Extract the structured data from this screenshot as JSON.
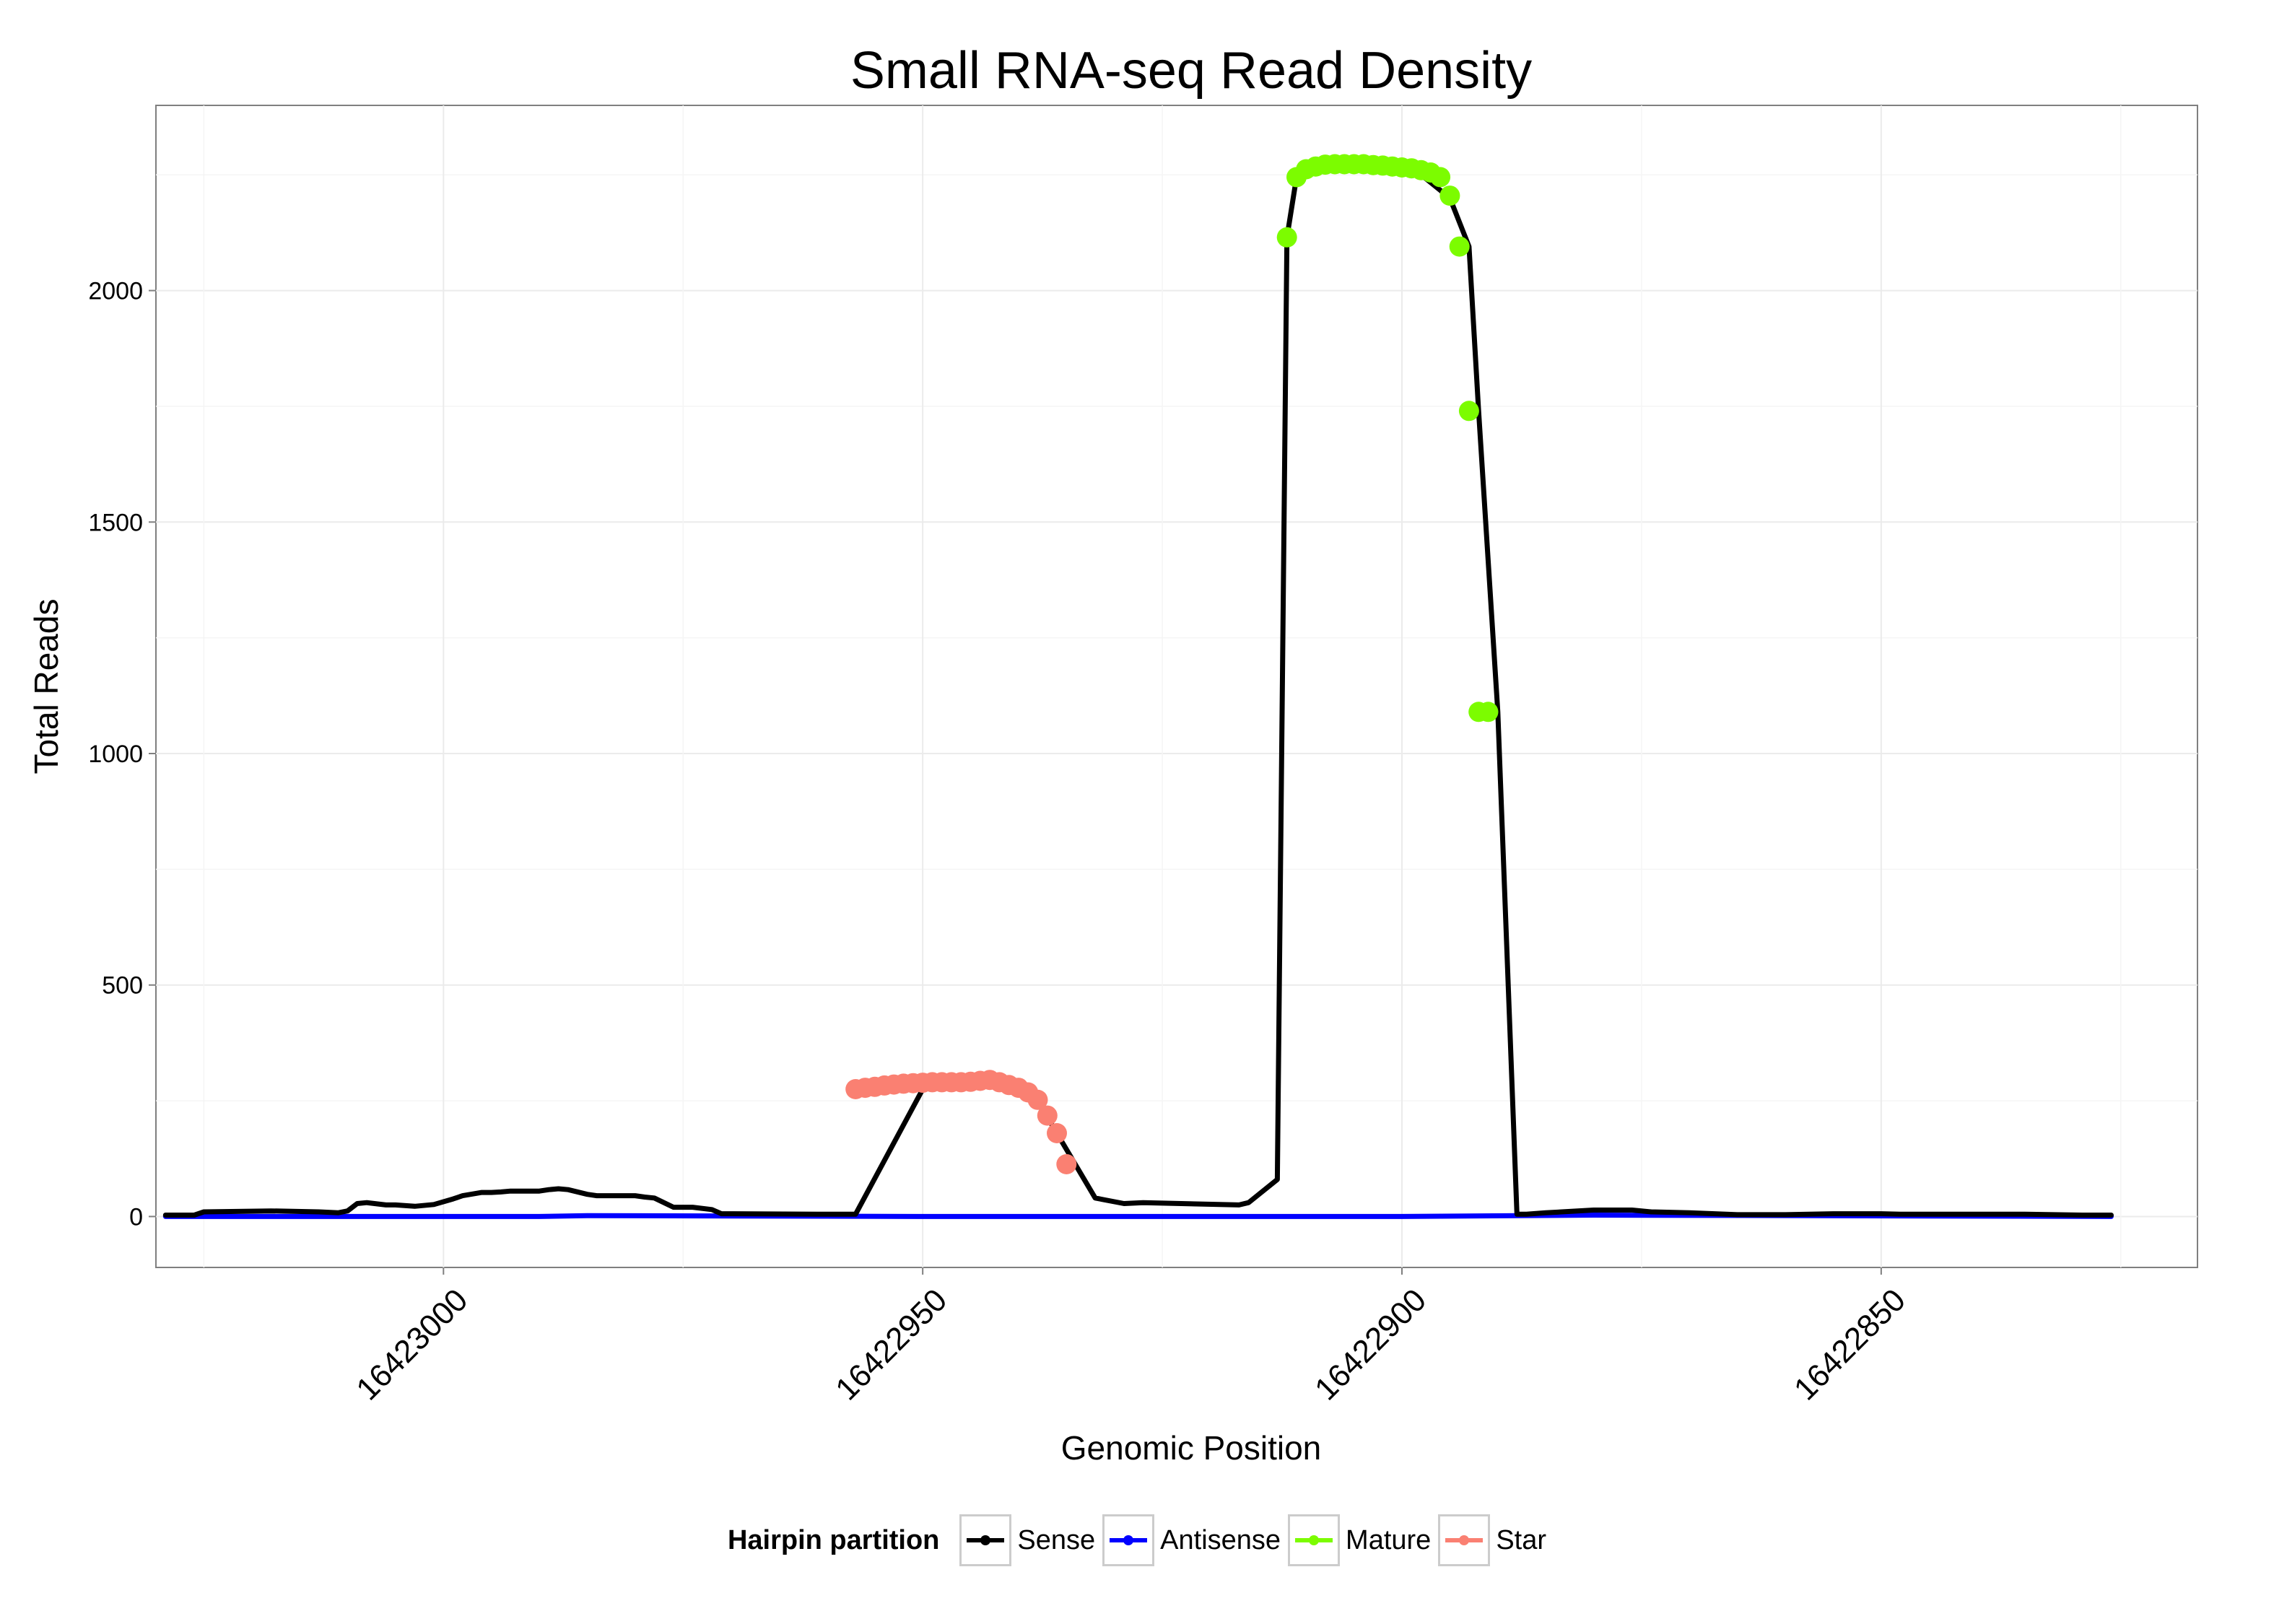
{
  "chart_data": {
    "type": "line",
    "title": "Small RNA-seq Read Density",
    "xlabel": "Genomic Position",
    "ylabel": "Total Reads",
    "x_reversed": true,
    "xlim": [
      16423030,
      16422817
    ],
    "ylim": [
      -110,
      2400
    ],
    "x_ticks": [
      16423000,
      16422950,
      16422900,
      16422850
    ],
    "x_tick_labels": [
      "16423000",
      "16422950",
      "16422900",
      "16422850"
    ],
    "y_ticks": [
      0,
      500,
      1000,
      1500,
      2000
    ],
    "y_tick_labels": [
      "0",
      "500",
      "1000",
      "1500",
      "2000"
    ],
    "grid": true,
    "legend": {
      "title": "Hairpin partition",
      "position": "bottom",
      "entries": [
        {
          "name": "Sense",
          "color": "#000000"
        },
        {
          "name": "Antisense",
          "color": "#0000ff"
        },
        {
          "name": "Mature",
          "color": "#7cfc00"
        },
        {
          "name": "Star",
          "color": "#fa8072"
        }
      ]
    },
    "series": [
      {
        "name": "Sense",
        "color": "#000000",
        "kind": "line",
        "x": [
          16423029,
          16423026,
          16423025,
          16423018,
          16423013,
          16423011,
          16423010,
          16423009,
          16423008,
          16423006,
          16423005,
          16423003,
          16423001,
          16422999,
          16422998,
          16422996,
          16422995,
          16422994,
          16422993,
          16422990,
          16422989,
          16422988,
          16422987,
          16422985,
          16422984,
          16422980,
          16422979,
          16422978,
          16422976,
          16422974,
          16422972,
          16422971,
          16422961,
          16422957,
          16422950,
          16422945,
          16422941,
          16422939,
          16422938,
          16422937,
          16422936,
          16422932,
          16422929,
          16422927,
          16422917,
          16422916,
          16422913,
          16422912,
          16422911,
          16422906,
          16422902,
          16422900,
          16422898,
          16422895,
          16422893,
          16422892,
          16422890,
          16422888,
          16422887,
          16422885,
          16422880,
          16422876,
          16422874,
          16422870,
          16422865,
          16422860,
          16422855,
          16422850,
          16422848,
          16422840,
          16422835,
          16422829,
          16422828,
          16422826
        ],
        "values": [
          3,
          3,
          10,
          12,
          10,
          8,
          12,
          28,
          30,
          25,
          25,
          22,
          26,
          38,
          45,
          52,
          52,
          53,
          55,
          55,
          58,
          60,
          58,
          48,
          45,
          45,
          42,
          40,
          20,
          20,
          15,
          6,
          5,
          5,
          275,
          290,
          290,
          270,
          250,
          215,
          180,
          40,
          28,
          30,
          25,
          30,
          80,
          2115,
          2245,
          2270,
          2270,
          2260,
          2250,
          2200,
          2095,
          1740,
          1090,
          5,
          5,
          8,
          14,
          14,
          10,
          8,
          4,
          4,
          6,
          6,
          5,
          5,
          5,
          3,
          3,
          3
        ]
      },
      {
        "name": "Antisense",
        "color": "#0000ff",
        "kind": "line",
        "x": [
          16423029,
          16422990,
          16422985,
          16422950,
          16422900,
          16422880,
          16422826
        ],
        "values": [
          0,
          0,
          2,
          0,
          0,
          3,
          0
        ]
      },
      {
        "name": "Mature",
        "color": "#7cfc00",
        "kind": "points",
        "x": [
          16422912,
          16422911,
          16422910,
          16422909,
          16422908,
          16422907,
          16422906,
          16422905,
          16422904,
          16422903,
          16422902,
          16422901,
          16422900,
          16422899,
          16422898,
          16422897,
          16422896,
          16422895,
          16422894,
          16422893,
          16422892,
          16422891
        ],
        "values": [
          2115,
          2245,
          2262,
          2268,
          2272,
          2273,
          2273,
          2273,
          2273,
          2271,
          2270,
          2268,
          2266,
          2264,
          2260,
          2255,
          2245,
          2205,
          2095,
          1740,
          1090,
          1090
        ]
      },
      {
        "name": "Star",
        "color": "#fa8072",
        "kind": "points",
        "x": [
          16422957,
          16422956,
          16422955,
          16422954,
          16422953,
          16422952,
          16422951,
          16422950,
          16422949,
          16422948,
          16422947,
          16422946,
          16422945,
          16422944,
          16422943,
          16422942,
          16422941,
          16422940,
          16422939,
          16422938,
          16422937,
          16422936,
          16422935
        ],
        "values": [
          275,
          278,
          280,
          283,
          285,
          287,
          288,
          289,
          290,
          290,
          290,
          290,
          291,
          293,
          295,
          290,
          284,
          278,
          268,
          252,
          218,
          180,
          113
        ]
      }
    ]
  }
}
